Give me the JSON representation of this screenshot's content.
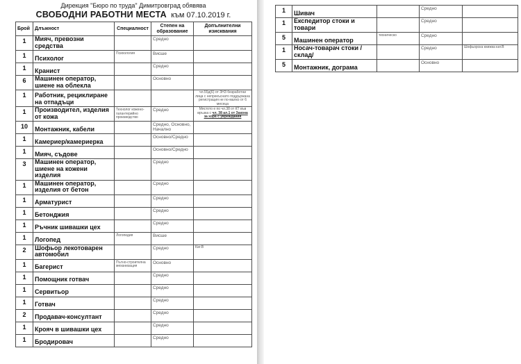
{
  "header": {
    "line1": "Дирекция \"Бюро по труда\" Димитровград обявява",
    "line2_title": "СВОБОДНИ РАБОТНИ МЕСТА",
    "line2_date": "към 07.10.2019 г."
  },
  "columns": {
    "count": "Брой",
    "position": "Длъжност",
    "specialty": "Специалност",
    "degree": "Степен на образование",
    "additional": "Допълнителни изисквания"
  },
  "left_table": {
    "rows": [
      {
        "count": "1",
        "position": "Мияч, превозни средства",
        "specialty": "",
        "degree": "Средно",
        "additional": ""
      },
      {
        "count": "1",
        "position": "Психолог",
        "specialty": "Психология",
        "degree": "Висше",
        "additional": ""
      },
      {
        "count": "1",
        "position": "Кранист",
        "specialty": "",
        "degree": "Средно",
        "additional": ""
      },
      {
        "count": "6",
        "position": "Машинен оператор, шиене на облекла",
        "specialty": "",
        "degree": "Основно",
        "additional": ""
      },
      {
        "count": "1",
        "position": "Работник, рециклиране на отпадъци",
        "specialty": "",
        "degree": "",
        "additional": [
          {
            "text": "чл.55д(6) от ЗНЗ безработни лица с непрекъснато поддържана регистрация не по-малко от 6 месеца",
            "u": false
          }
        ]
      },
      {
        "count": "1",
        "position": "Производител, изделия от кожа",
        "specialty": "Технолог кожено-галантерийно производство",
        "degree": "Средно",
        "additional": [
          {
            "text": "Мястото е по чл.38 от КТ във връзка с ",
            "u": false
          },
          {
            "text": "чл. 38 ал.1 от Закона за хора с увреждания",
            "u": true
          }
        ]
      },
      {
        "count": "10",
        "position": "Монтажник, кабели",
        "specialty": "",
        "degree": "Средно, Основно, Начално",
        "additional": ""
      },
      {
        "count": "1",
        "position": "Камериер/камериерка",
        "specialty": "",
        "degree": "Основно/Средно",
        "additional": ""
      },
      {
        "count": "1",
        "position": "Мияч, съдове",
        "specialty": "",
        "degree": "Основно/Средно",
        "additional": ""
      },
      {
        "count": "3",
        "position": "Машинен оператор, шиене на кожени изделия",
        "specialty": "",
        "degree": "Средно",
        "additional": ""
      },
      {
        "count": "1",
        "position": "Машинен оператор, изделия от бетон",
        "specialty": "",
        "degree": "Средно",
        "additional": ""
      },
      {
        "count": "1",
        "position": "Арматурист",
        "specialty": "",
        "degree": "Средно",
        "additional": ""
      },
      {
        "count": "1",
        "position": "Бетонджия",
        "specialty": "",
        "degree": "Средно",
        "additional": ""
      },
      {
        "count": "1",
        "position": "Ръчник шивашки цех",
        "specialty": "",
        "degree": "Средно",
        "additional": ""
      },
      {
        "count": "1",
        "position": "Логопед",
        "specialty": "Логопедия",
        "degree": "Висше",
        "additional": ""
      },
      {
        "count": "2",
        "position": "Шофьор лекотоварен автомобил",
        "specialty": "",
        "degree": "Средно",
        "additional": "Кат.В"
      },
      {
        "count": "1",
        "position": "Багерист",
        "specialty": "Пътно-строителна механизация",
        "degree": "Основно",
        "additional": ""
      },
      {
        "count": "1",
        "position": "Помощник готвач",
        "specialty": "",
        "degree": "Средно",
        "additional": ""
      },
      {
        "count": "1",
        "position": "Сервитьор",
        "specialty": "",
        "degree": "Средно",
        "additional": ""
      },
      {
        "count": "1",
        "position": "Готвач",
        "specialty": "",
        "degree": "Средно",
        "additional": ""
      },
      {
        "count": "2",
        "position": "Продавач-консултант",
        "specialty": "",
        "degree": "Средно",
        "additional": ""
      },
      {
        "count": "1",
        "position": "Крояч в шивашки цех",
        "specialty": "",
        "degree": "Средно",
        "additional": ""
      },
      {
        "count": "1",
        "position": "Бродировач",
        "specialty": "",
        "degree": "Средно",
        "additional": ""
      }
    ]
  },
  "right_table": {
    "rows": [
      {
        "count": "1",
        "position": "Шивач",
        "specialty": "",
        "degree": "Средно",
        "additional": ""
      },
      {
        "count": "1",
        "position": "Експедитор стоки и товари",
        "specialty": "",
        "degree": "Средно",
        "additional": ""
      },
      {
        "count": "5",
        "position": "Машинен оператор",
        "specialty": "техническо",
        "degree": "Средно",
        "additional": ""
      },
      {
        "count": "1",
        "position": "Носач-товарач стоки /склад/",
        "specialty": "",
        "degree": "Средно",
        "additional": "Шофьорска книжка кат.В"
      },
      {
        "count": "5",
        "position": "Монтажник, дограма",
        "specialty": "",
        "degree": "Основно",
        "additional": ""
      }
    ]
  }
}
